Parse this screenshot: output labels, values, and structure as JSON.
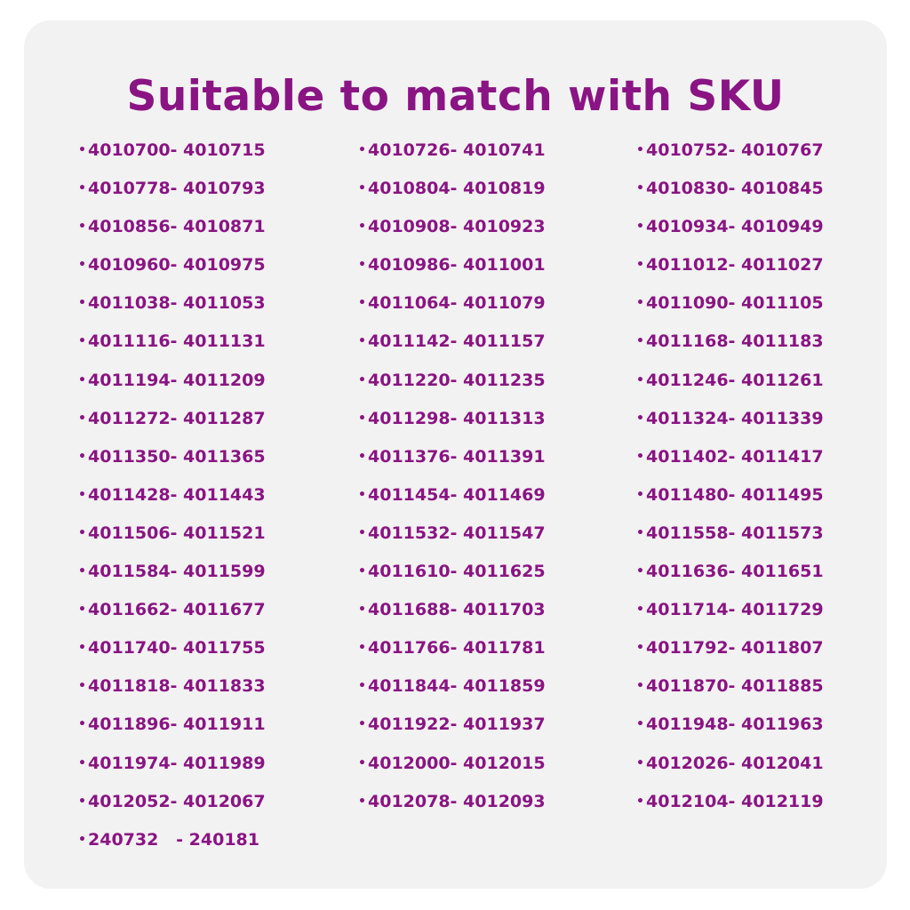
{
  "title": "Suitable to match with SKU",
  "colors": {
    "accent": "#8a1483",
    "card_background": "#f2f2f2"
  },
  "columns": [
    [
      "4010700- 4010715",
      "4010778- 4010793",
      "4010856- 4010871",
      "4010960- 4010975",
      "4011038- 4011053",
      "4011116- 4011131",
      "4011194- 4011209",
      "4011272- 4011287",
      "4011350- 4011365",
      "4011428- 4011443",
      "4011506- 4011521",
      "4011584- 4011599",
      "4011662- 4011677",
      "4011740- 4011755",
      "4011818- 4011833",
      "4011896- 4011911",
      "4011974- 4011989",
      "4012052- 4012067",
      "240732   - 240181"
    ],
    [
      "4010726- 4010741",
      "4010804- 4010819",
      "4010908- 4010923",
      "4010986- 4011001",
      "4011064- 4011079",
      "4011142- 4011157",
      "4011220- 4011235",
      "4011298- 4011313",
      "4011376- 4011391",
      "4011454- 4011469",
      "4011532- 4011547",
      "4011610- 4011625",
      "4011688- 4011703",
      "4011766- 4011781",
      "4011844- 4011859",
      "4011922- 4011937",
      "4012000- 4012015",
      "4012078- 4012093"
    ],
    [
      "4010752- 4010767",
      "4010830- 4010845",
      "4010934- 4010949",
      "4011012- 4011027",
      "4011090- 4011105",
      "4011168- 4011183",
      "4011246- 4011261",
      "4011324- 4011339",
      "4011402- 4011417",
      "4011480- 4011495",
      "4011558- 4011573",
      "4011636- 4011651",
      "4011714- 4011729",
      "4011792- 4011807",
      "4011870- 4011885",
      "4011948- 4011963",
      "4012026- 4012041",
      "4012104- 4012119"
    ]
  ]
}
